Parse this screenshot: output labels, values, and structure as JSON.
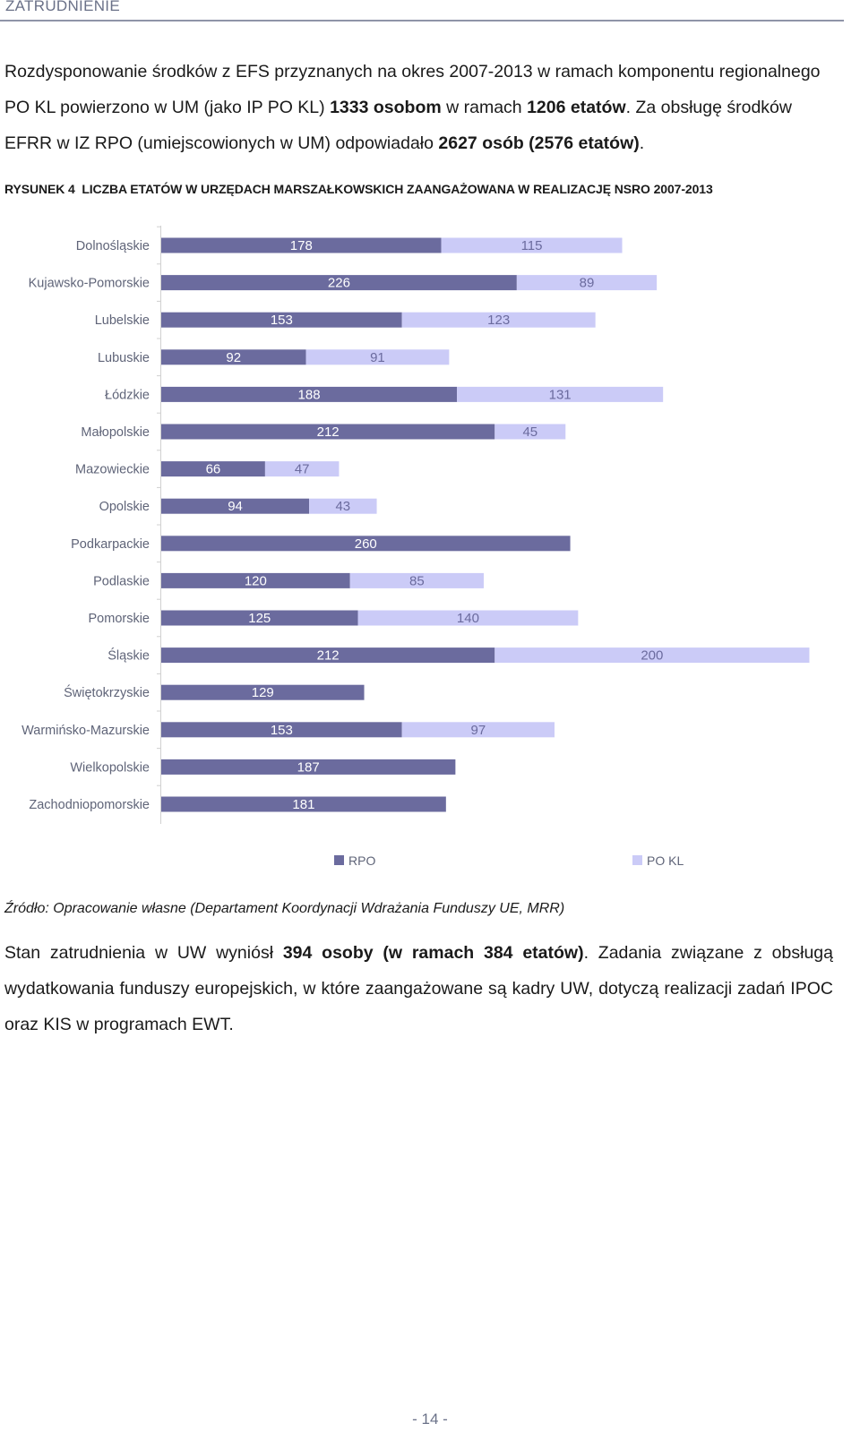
{
  "header": {
    "section": "ZATRUDNIENIE"
  },
  "paragraph1": {
    "t1": "Rozdysponowanie środków z EFS przyznanych na okres 2007-2013 w ramach komponentu regionalnego PO KL powierzono w UM (jako IP PO KL) ",
    "b1": "1333 osobom",
    "t2": " w ramach ",
    "b2": "1206 etatów",
    "t3": ". Za obsługę środków EFRR w IZ RPO (umiejscowionych w UM) odpowiadało ",
    "b3": "2627 osób (2576 etatów)",
    "t4": "."
  },
  "figure": {
    "label": "RYSUNEK 4",
    "title": "LICZBA ETATÓW W URZĘDACH MARSZAŁKOWSKICH ZAANGAŻOWANA W REALIZACJĘ NSRO 2007-2013"
  },
  "chart_data": {
    "type": "bar",
    "orientation": "horizontal",
    "stacked": true,
    "categories": [
      "Dolnośląskie",
      "Kujawsko-Pomorskie",
      "Lubelskie",
      "Lubuskie",
      "Łódzkie",
      "Małopolskie",
      "Mazowieckie",
      "Opolskie",
      "Podkarpackie",
      "Podlaskie",
      "Pomorskie",
      "Śląskie",
      "Świętokrzyskie",
      "Warmińsko-Mazurskie",
      "Wielkopolskie",
      "Zachodniopomorskie"
    ],
    "series": [
      {
        "name": "RPO",
        "color": "#6b6b9e",
        "values": [
          178,
          226,
          153,
          92,
          188,
          212,
          66,
          94,
          260,
          120,
          125,
          212,
          129,
          153,
          187,
          181
        ]
      },
      {
        "name": "PO KL",
        "color": "#cbcbf7",
        "values": [
          115,
          89,
          123,
          91,
          131,
          45,
          47,
          43,
          null,
          85,
          140,
          200,
          null,
          97,
          null,
          null
        ]
      }
    ],
    "legend_position": "bottom",
    "grid": false
  },
  "source": "Źródło: Opracowanie własne (Departament Koordynacji Wdrażania Funduszy UE, MRR)",
  "paragraph2": {
    "t1": "Stan zatrudnienia w UW wyniósł ",
    "b1": "394 osoby (w ramach 384 etatów)",
    "t2": ". Zadania związane z obsługą wydatkowania funduszy europejskich, w które zaangażowane są kadry UW, dotyczą realizacji zadań IPOC oraz KIS w programach EWT."
  },
  "page": {
    "number": "- 14 -"
  }
}
